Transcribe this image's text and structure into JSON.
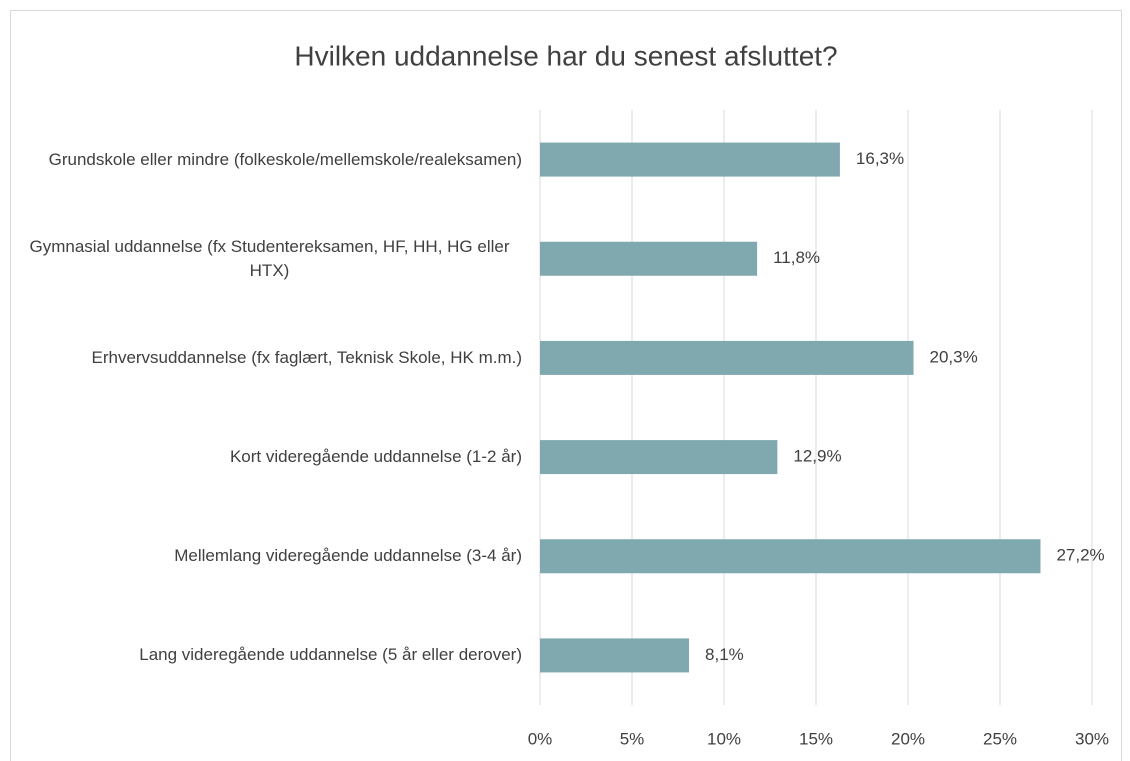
{
  "chart_data": {
    "type": "hbar",
    "title": "Hvilken uddannelse har du senest afsluttet?",
    "categories": [
      "Grundskole eller mindre (folkeskole/mellemskole/realeksamen)",
      "Gymnasial uddannelse (fx Studentereksamen, HF, HH, HG eller HTX)",
      "Erhvervsuddannelse (fx faglært, Teknisk Skole, HK m.m.)",
      "Kort videregående uddannelse (1-2 år)",
      "Mellemlang videregående uddannelse (3-4 år)",
      "Lang videregående uddannelse (5 år eller derover)"
    ],
    "values": [
      16.3,
      11.8,
      20.3,
      12.9,
      27.2,
      8.1
    ],
    "value_labels": [
      "16,3%",
      "11,8%",
      "20,3%",
      "12,9%",
      "27,2%",
      "8,1%"
    ],
    "color": "#7fa9ae",
    "xlim": [
      0,
      30
    ],
    "xticks": [
      {
        "value": 0,
        "label": "0%"
      },
      {
        "value": 5,
        "label": "5%"
      },
      {
        "value": 10,
        "label": "10%"
      },
      {
        "value": 15,
        "label": "15%"
      },
      {
        "value": 20,
        "label": "20%"
      },
      {
        "value": 25,
        "label": "25%"
      },
      {
        "value": 30,
        "label": "30%"
      }
    ],
    "grid": true
  }
}
